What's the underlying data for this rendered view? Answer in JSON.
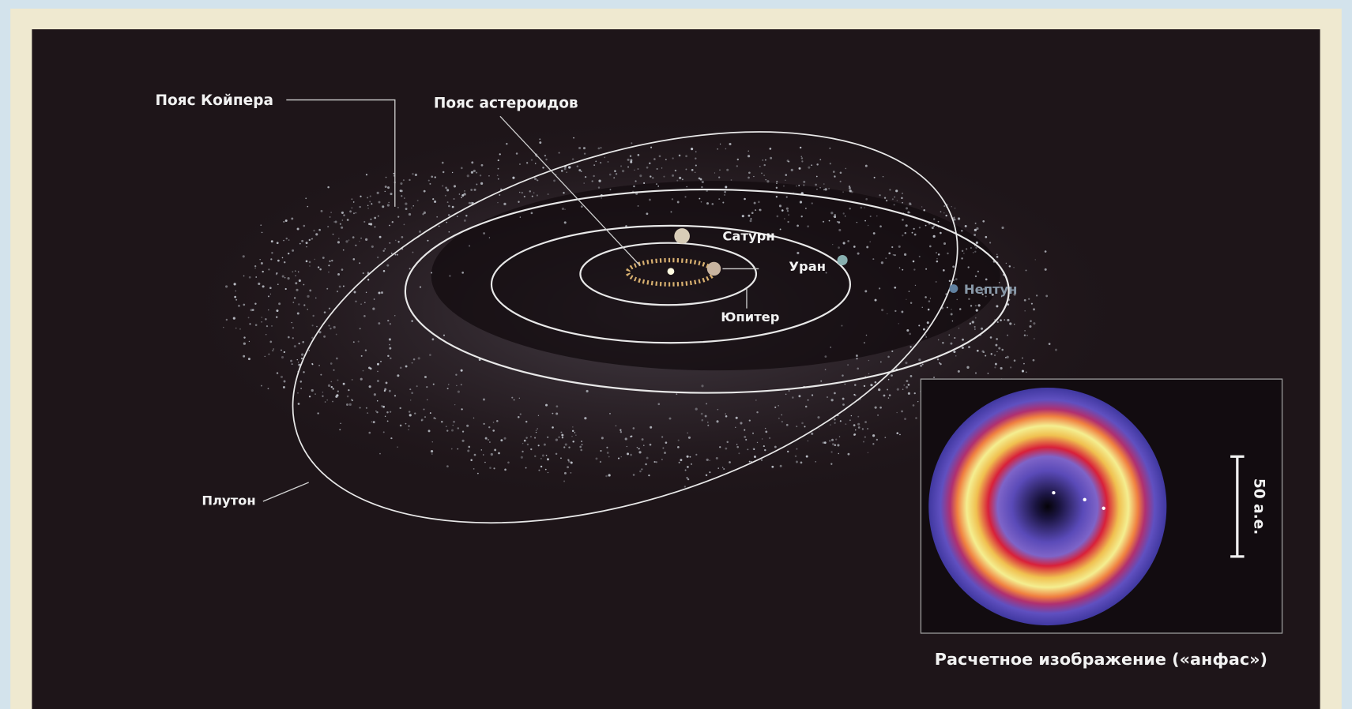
{
  "labels": {
    "kuiper_belt": "Пояс Койпера",
    "asteroid_belt": "Пояс астероидов",
    "saturn": "Сатурн",
    "uranus": "Уран",
    "neptune": "Нептун",
    "jupiter": "Юпитер",
    "pluto": "Плутон"
  },
  "inset": {
    "caption": "Расчетное изображение («анфас»)",
    "scale": "50 а.е."
  }
}
